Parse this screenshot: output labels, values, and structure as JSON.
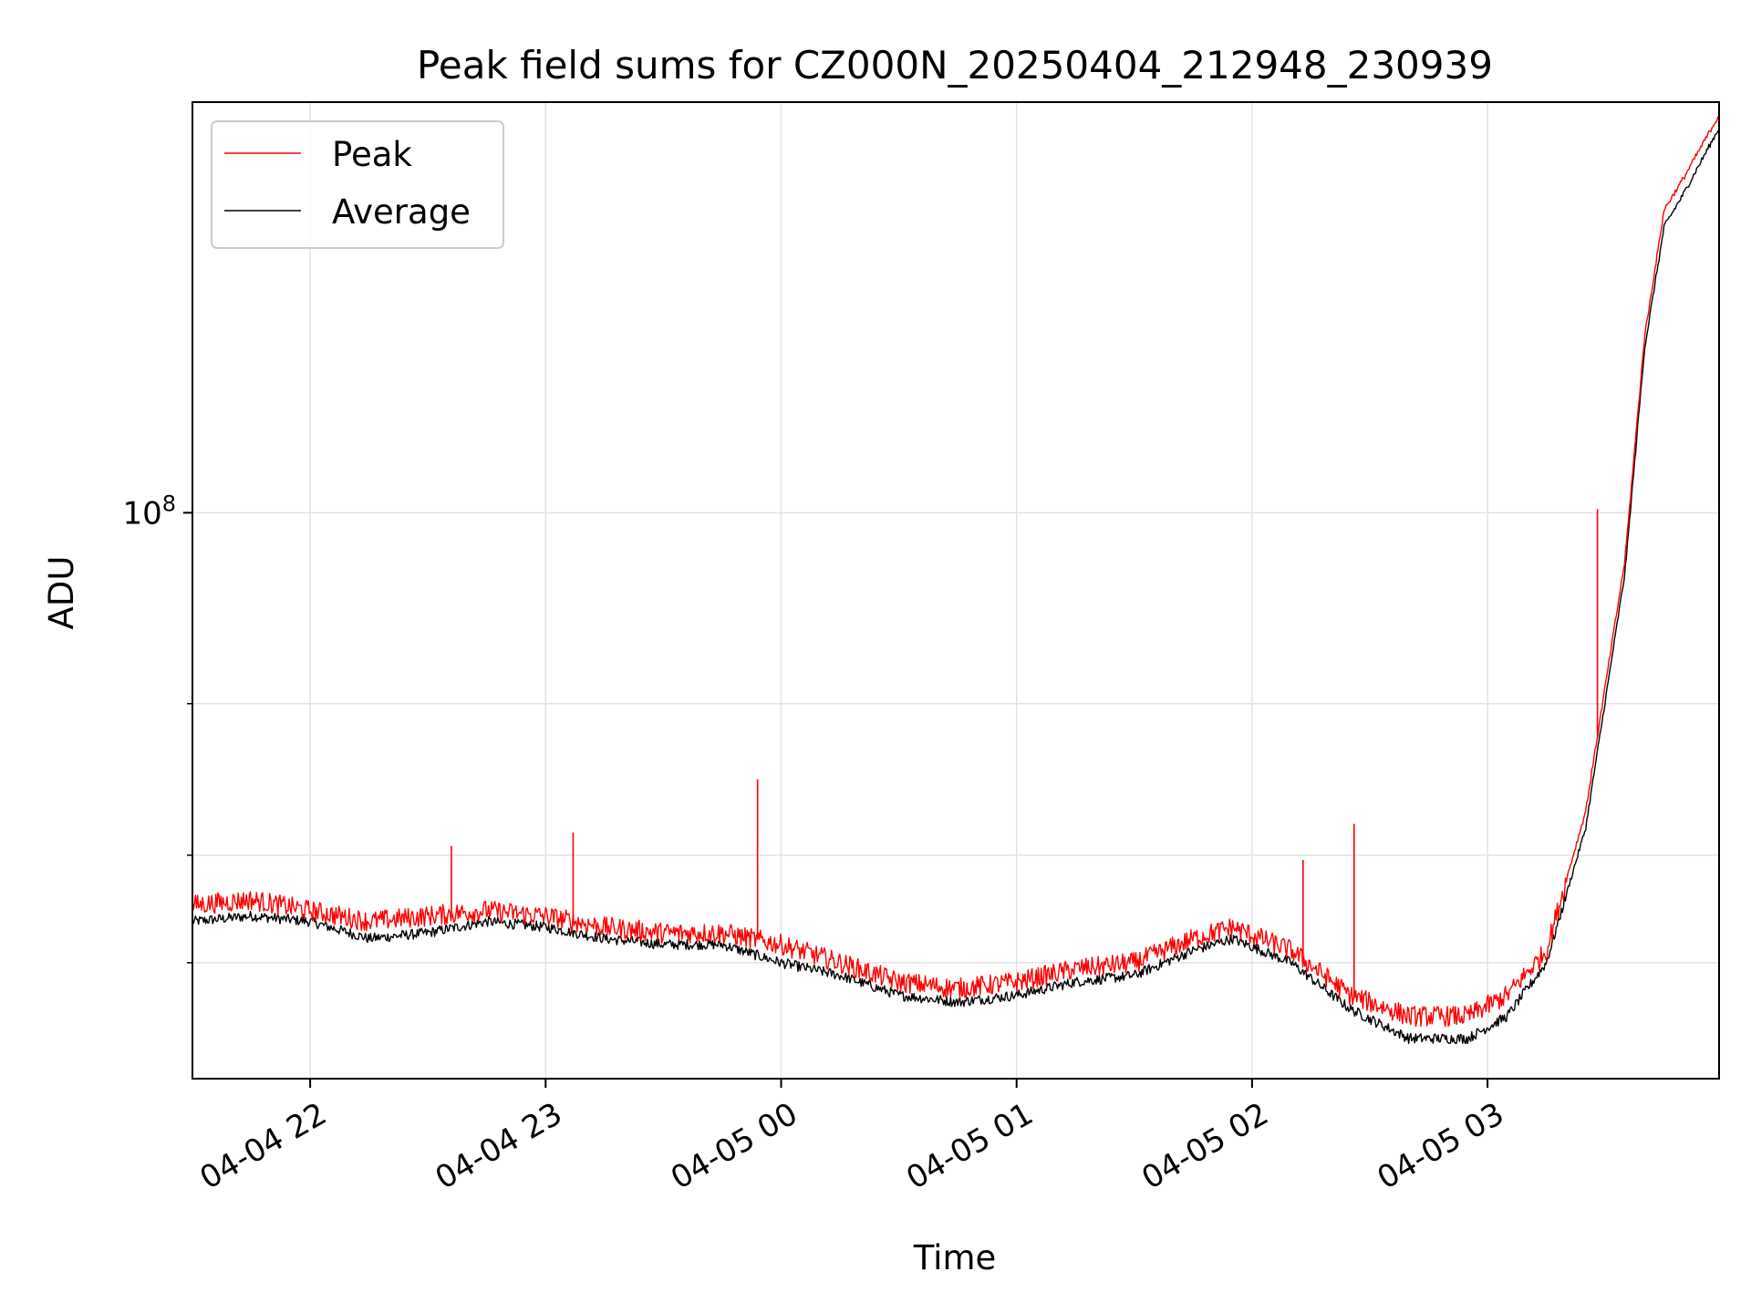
{
  "chart_data": {
    "type": "line",
    "title": "Peak field sums for CZ000N_20250404_212948_230939",
    "xlabel": "Time",
    "ylabel": "ADU",
    "y_scale": "log",
    "ylim": [
      22000000,
      300000000
    ],
    "xlim": [
      "2025-04-04 21:30",
      "2025-04-05 03:59"
    ],
    "x_ticks": [
      {
        "value": "2025-04-04 22:00",
        "label": "04-04 22"
      },
      {
        "value": "2025-04-04 23:00",
        "label": "04-04 23"
      },
      {
        "value": "2025-04-05 00:00",
        "label": "04-05 00"
      },
      {
        "value": "2025-04-05 01:00",
        "label": "04-05 01"
      },
      {
        "value": "2025-04-05 02:00",
        "label": "04-05 02"
      },
      {
        "value": "2025-04-05 03:00",
        "label": "04-05 03"
      }
    ],
    "y_major_ticks": [
      {
        "value": 100000000,
        "base": "10",
        "exp": "8"
      }
    ],
    "y_minor_ticks": [
      30000000,
      40000000,
      60000000
    ],
    "grid": true,
    "legend_position": "upper-left",
    "series": [
      {
        "name": "Peak",
        "color": "#ff0000",
        "x": [
          "2025-04-04 21:30",
          "2025-04-04 21:45",
          "2025-04-04 22:00",
          "2025-04-04 22:15",
          "2025-04-04 22:30",
          "2025-04-04 22:45",
          "2025-04-04 23:00",
          "2025-04-04 23:15",
          "2025-04-04 23:30",
          "2025-04-04 23:45",
          "2025-04-05 00:00",
          "2025-04-05 00:15",
          "2025-04-05 00:30",
          "2025-04-05 00:45",
          "2025-04-05 01:00",
          "2025-04-05 01:15",
          "2025-04-05 01:30",
          "2025-04-05 01:45",
          "2025-04-05 01:55",
          "2025-04-05 02:10",
          "2025-04-05 02:25",
          "2025-04-05 02:40",
          "2025-04-05 02:55",
          "2025-04-05 03:05",
          "2025-04-05 03:15",
          "2025-04-05 03:25",
          "2025-04-05 03:35",
          "2025-04-05 03:40",
          "2025-04-05 03:45",
          "2025-04-05 03:50",
          "2025-04-05 03:59"
        ],
        "y": [
          35000000,
          35500000,
          34500000,
          33500000,
          34000000,
          34500000,
          34000000,
          33000000,
          32500000,
          32500000,
          31500000,
          30000000,
          28500000,
          28000000,
          28500000,
          29500000,
          30000000,
          32000000,
          33000000,
          31000000,
          27500000,
          26000000,
          26000000,
          27500000,
          31000000,
          45000000,
          88000000,
          160000000,
          225000000,
          245000000,
          290000000
        ]
      },
      {
        "name": "Average",
        "color": "#000000",
        "x": [
          "2025-04-04 21:30",
          "2025-04-04 21:45",
          "2025-04-04 22:00",
          "2025-04-04 22:15",
          "2025-04-04 22:30",
          "2025-04-04 22:45",
          "2025-04-04 23:00",
          "2025-04-04 23:15",
          "2025-04-04 23:30",
          "2025-04-04 23:45",
          "2025-04-05 00:00",
          "2025-04-05 00:15",
          "2025-04-05 00:30",
          "2025-04-05 00:45",
          "2025-04-05 01:00",
          "2025-04-05 01:15",
          "2025-04-05 01:30",
          "2025-04-05 01:45",
          "2025-04-05 01:55",
          "2025-04-05 02:10",
          "2025-04-05 02:25",
          "2025-04-05 02:40",
          "2025-04-05 02:55",
          "2025-04-05 03:05",
          "2025-04-05 03:15",
          "2025-04-05 03:25",
          "2025-04-05 03:35",
          "2025-04-05 03:40",
          "2025-04-05 03:45",
          "2025-04-05 03:50",
          "2025-04-05 03:59"
        ],
        "y": [
          33500000,
          34000000,
          33500000,
          32000000,
          32500000,
          33500000,
          33000000,
          32000000,
          31500000,
          31500000,
          30000000,
          29000000,
          27500000,
          27000000,
          27500000,
          28500000,
          29000000,
          31000000,
          32000000,
          30000000,
          26500000,
          24500000,
          24500000,
          26000000,
          30000000,
          43000000,
          85000000,
          155000000,
          215000000,
          235000000,
          280000000
        ]
      }
    ],
    "spikes": [
      {
        "series": "Peak",
        "x": "2025-04-04 22:36",
        "y": 41000000
      },
      {
        "series": "Peak",
        "x": "2025-04-04 23:07",
        "y": 42500000
      },
      {
        "series": "Peak",
        "x": "2025-04-04 23:54",
        "y": 49000000
      },
      {
        "series": "Peak",
        "x": "2025-04-05 02:13",
        "y": 39500000
      },
      {
        "series": "Peak",
        "x": "2025-04-05 02:26",
        "y": 43500000
      },
      {
        "series": "Peak",
        "x": "2025-04-05 03:28",
        "y": 101000000
      }
    ]
  }
}
